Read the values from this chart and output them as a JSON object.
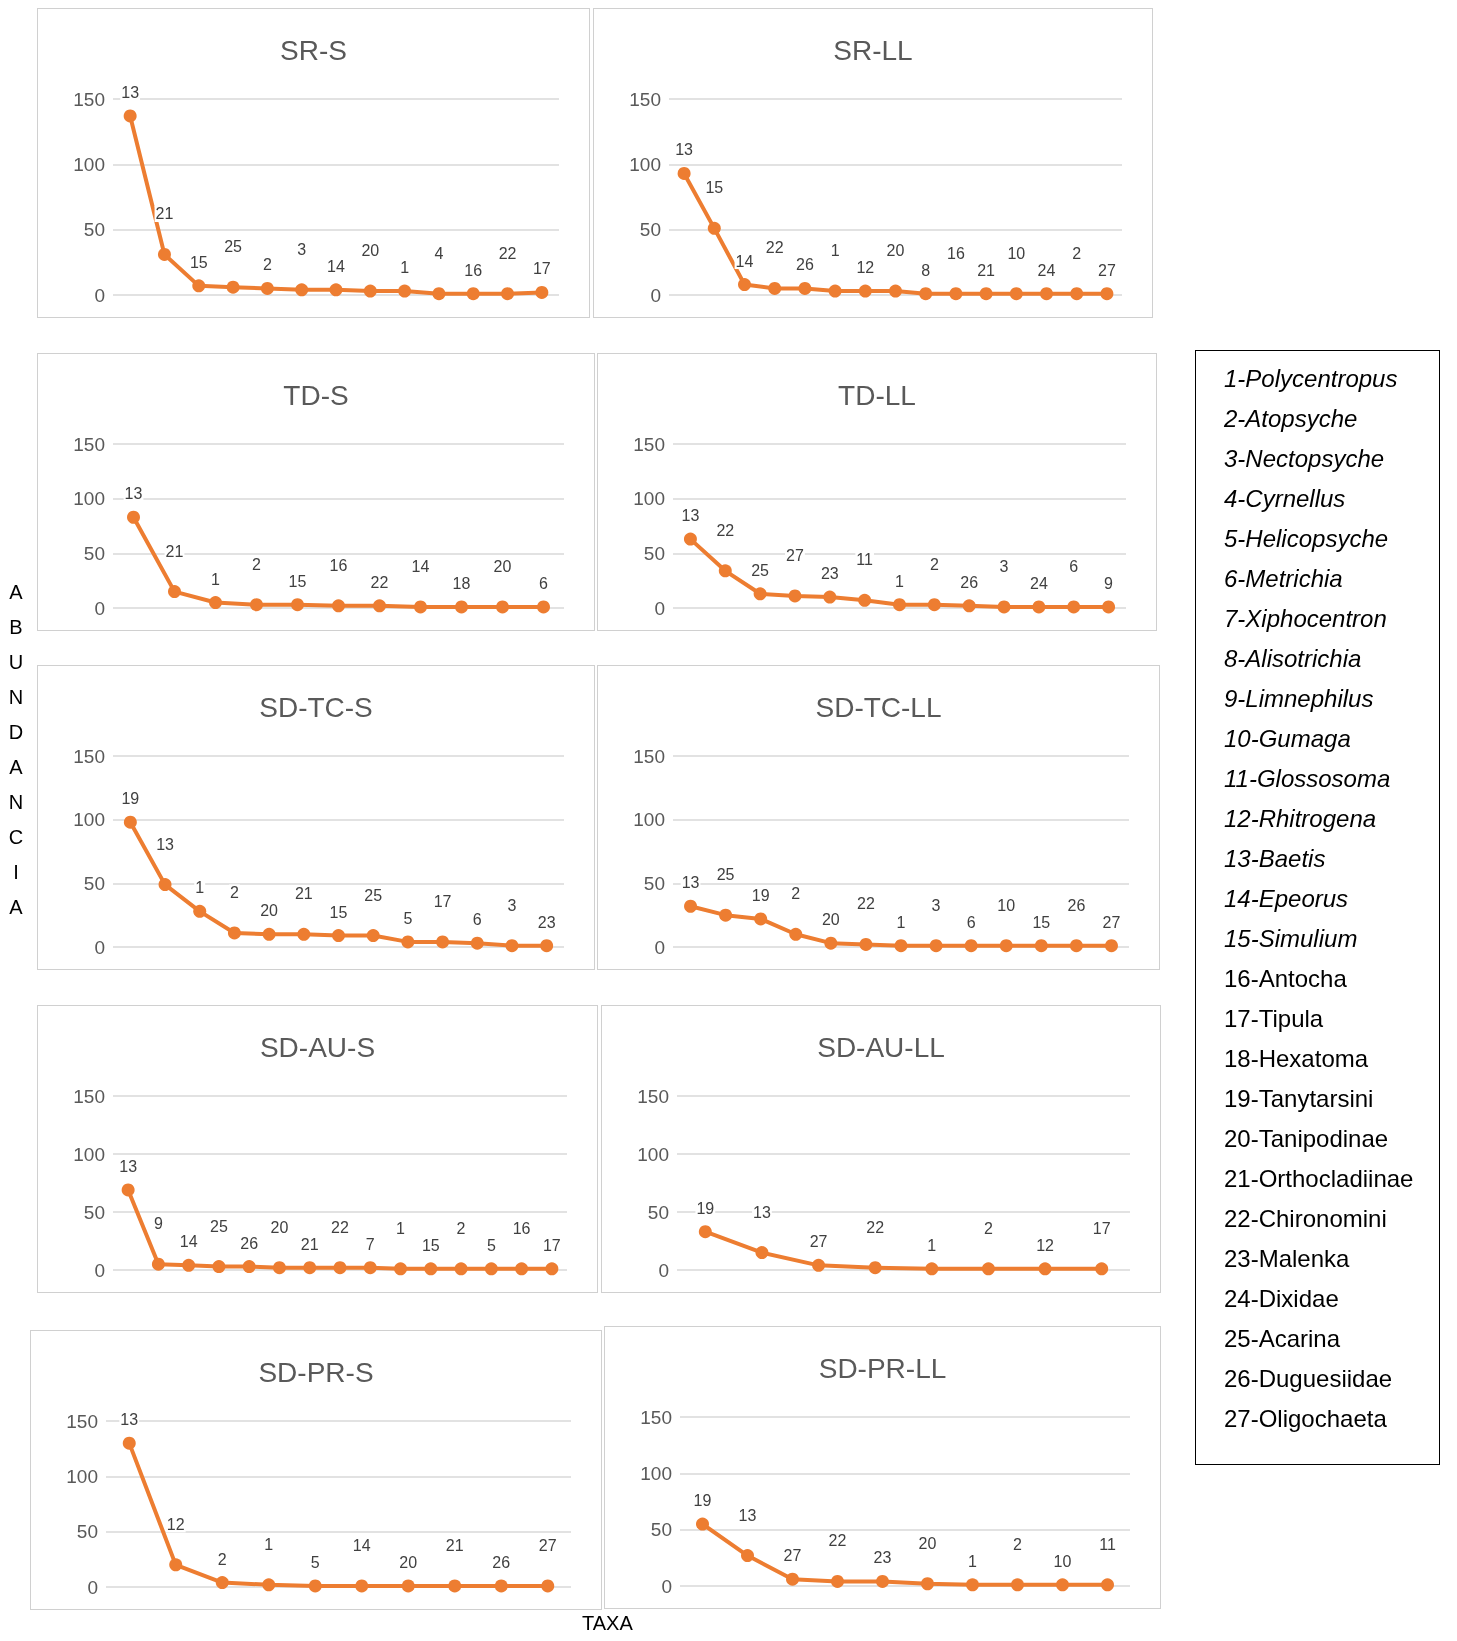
{
  "chart_data": [
    {
      "type": "line",
      "title": "SR-S",
      "categories": [
        "13",
        "21",
        "15",
        "25",
        "2",
        "3",
        "14",
        "20",
        "1",
        "4",
        "16",
        "22",
        "17"
      ],
      "series": [
        {
          "color": "#ed7d31",
          "values": [
            137,
            31,
            7,
            6,
            5,
            4,
            4,
            3,
            3,
            1,
            1,
            1,
            2
          ]
        }
      ],
      "ylim": [
        0,
        150
      ],
      "yticks": [
        0,
        50,
        100,
        150
      ],
      "grid": "y",
      "marker": "circle",
      "line_style": "solid",
      "tick_labels": "y"
    },
    {
      "type": "line",
      "title": "SR-LL",
      "categories": [
        "13",
        "15",
        "14",
        "22",
        "26",
        "1",
        "12",
        "20",
        "8",
        "16",
        "21",
        "10",
        "24",
        "2",
        "27"
      ],
      "series": [
        {
          "color": "#ed7d31",
          "values": [
            93,
            51,
            8,
            5,
            5,
            3,
            3,
            3,
            1,
            1,
            1,
            1,
            1,
            1,
            1
          ]
        }
      ],
      "ylim": [
        0,
        150
      ],
      "yticks": [
        0,
        50,
        100,
        150
      ],
      "grid": "y",
      "marker": "circle",
      "line_style": "solid",
      "tick_labels": "y"
    },
    {
      "type": "line",
      "title": "TD-S",
      "categories": [
        "13",
        "21",
        "1",
        "2",
        "15",
        "16",
        "22",
        "14",
        "18",
        "20",
        "6"
      ],
      "series": [
        {
          "color": "#ed7d31",
          "values": [
            83,
            15,
            5,
            3,
            3,
            2,
            2,
            1,
            1,
            1,
            1
          ]
        }
      ],
      "ylim": [
        0,
        150
      ],
      "yticks": [
        0,
        50,
        100,
        150
      ],
      "grid": "y",
      "marker": "circle",
      "line_style": "solid",
      "tick_labels": "y"
    },
    {
      "type": "line",
      "title": "TD-LL",
      "categories": [
        "13",
        "22",
        "25",
        "27",
        "23",
        "11",
        "1",
        "2",
        "26",
        "3",
        "24",
        "6",
        "9"
      ],
      "series": [
        {
          "color": "#ed7d31",
          "values": [
            63,
            34,
            13,
            11,
            10,
            7,
            3,
            3,
            2,
            1,
            1,
            1,
            1
          ]
        }
      ],
      "ylim": [
        0,
        150
      ],
      "yticks": [
        0,
        50,
        100,
        150
      ],
      "grid": "y",
      "marker": "circle",
      "line_style": "solid",
      "tick_labels": "y"
    },
    {
      "type": "line",
      "title": "SD-TC-S",
      "categories": [
        "19",
        "13",
        "1",
        "2",
        "20",
        "21",
        "15",
        "25",
        "5",
        "17",
        "6",
        "3",
        "23"
      ],
      "series": [
        {
          "color": "#ed7d31",
          "values": [
            98,
            49,
            28,
            11,
            10,
            10,
            9,
            9,
            4,
            4,
            3,
            1,
            1
          ]
        }
      ],
      "ylim": [
        0,
        150
      ],
      "yticks": [
        0,
        50,
        100,
        150
      ],
      "grid": "y",
      "marker": "circle",
      "line_style": "solid",
      "tick_labels": "y"
    },
    {
      "type": "line",
      "title": "SD-TC-LL",
      "categories": [
        "13",
        "25",
        "19",
        "2",
        "20",
        "22",
        "1",
        "3",
        "6",
        "10",
        "15",
        "26",
        "27"
      ],
      "series": [
        {
          "color": "#ed7d31",
          "values": [
            32,
            25,
            22,
            10,
            3,
            2,
            1,
            1,
            1,
            1,
            1,
            1,
            1
          ]
        }
      ],
      "ylim": [
        0,
        150
      ],
      "yticks": [
        0,
        50,
        100,
        150
      ],
      "grid": "y",
      "marker": "circle",
      "line_style": "solid",
      "tick_labels": "y"
    },
    {
      "type": "line",
      "title": "SD-AU-S",
      "categories": [
        "13",
        "9",
        "14",
        "25",
        "26",
        "20",
        "21",
        "22",
        "7",
        "1",
        "15",
        "2",
        "5",
        "16",
        "17"
      ],
      "series": [
        {
          "color": "#ed7d31",
          "values": [
            69,
            5,
            4,
            3,
            3,
            2,
            2,
            2,
            2,
            1,
            1,
            1,
            1,
            1,
            1
          ]
        }
      ],
      "ylim": [
        0,
        150
      ],
      "yticks": [
        0,
        50,
        100,
        150
      ],
      "grid": "y",
      "marker": "circle",
      "line_style": "solid",
      "tick_labels": "y"
    },
    {
      "type": "line",
      "title": "SD-AU-LL",
      "categories": [
        "19",
        "13",
        "27",
        "22",
        "1",
        "2",
        "12",
        "17"
      ],
      "series": [
        {
          "color": "#ed7d31",
          "values": [
            33,
            15,
            4,
            2,
            1,
            1,
            1,
            1
          ]
        }
      ],
      "ylim": [
        0,
        150
      ],
      "yticks": [
        0,
        50,
        100,
        150
      ],
      "grid": "y",
      "marker": "circle",
      "line_style": "solid",
      "tick_labels": "y"
    },
    {
      "type": "line",
      "title": "SD-PR-S",
      "categories": [
        "13",
        "12",
        "2",
        "1",
        "5",
        "14",
        "20",
        "21",
        "26",
        "27"
      ],
      "series": [
        {
          "color": "#ed7d31",
          "values": [
            130,
            20,
            4,
            2,
            1,
            1,
            1,
            1,
            1,
            1
          ]
        }
      ],
      "ylim": [
        0,
        150
      ],
      "yticks": [
        0,
        50,
        100,
        150
      ],
      "grid": "y",
      "marker": "circle",
      "line_style": "solid",
      "tick_labels": "y"
    },
    {
      "type": "line",
      "title": "SD-PR-LL",
      "categories": [
        "19",
        "13",
        "27",
        "22",
        "23",
        "20",
        "1",
        "2",
        "10",
        "11"
      ],
      "series": [
        {
          "color": "#ed7d31",
          "values": [
            55,
            27,
            6,
            4,
            4,
            2,
            1,
            1,
            1,
            1
          ]
        }
      ],
      "ylim": [
        0,
        150
      ],
      "yticks": [
        0,
        50,
        100,
        150
      ],
      "grid": "y",
      "marker": "circle",
      "line_style": "solid",
      "tick_labels": "y"
    },
    {
      "type": "other",
      "xlabel": "TAXA",
      "ylabel": "ABUNDANCIA",
      "annotations": [
        "1-Polycentropus",
        "2-Atopsyche",
        "3-Nectopsyche",
        "4-Cyrnellus",
        "5-Helicopsyche",
        "6-Metrichia",
        "7-Xiphocentron",
        "8-Alisotrichia",
        "9-Limnephilus",
        "10-Gumaga",
        "11-Glossosoma",
        "12-Rhitrogena",
        "13-Baetis",
        "14-Epeorus",
        "15-Simulium",
        "16-Antocha",
        "17-Tipula",
        "18-Hexatoma",
        "19-Tanytarsini",
        "20-Tanipodinae",
        "21-Orthocladiinae",
        "22-Chironomini",
        "23-Malenka",
        "24-Dixidae",
        "25-Acarina",
        "26-Duguesiidae",
        "27-Oligochaeta"
      ]
    }
  ]
}
